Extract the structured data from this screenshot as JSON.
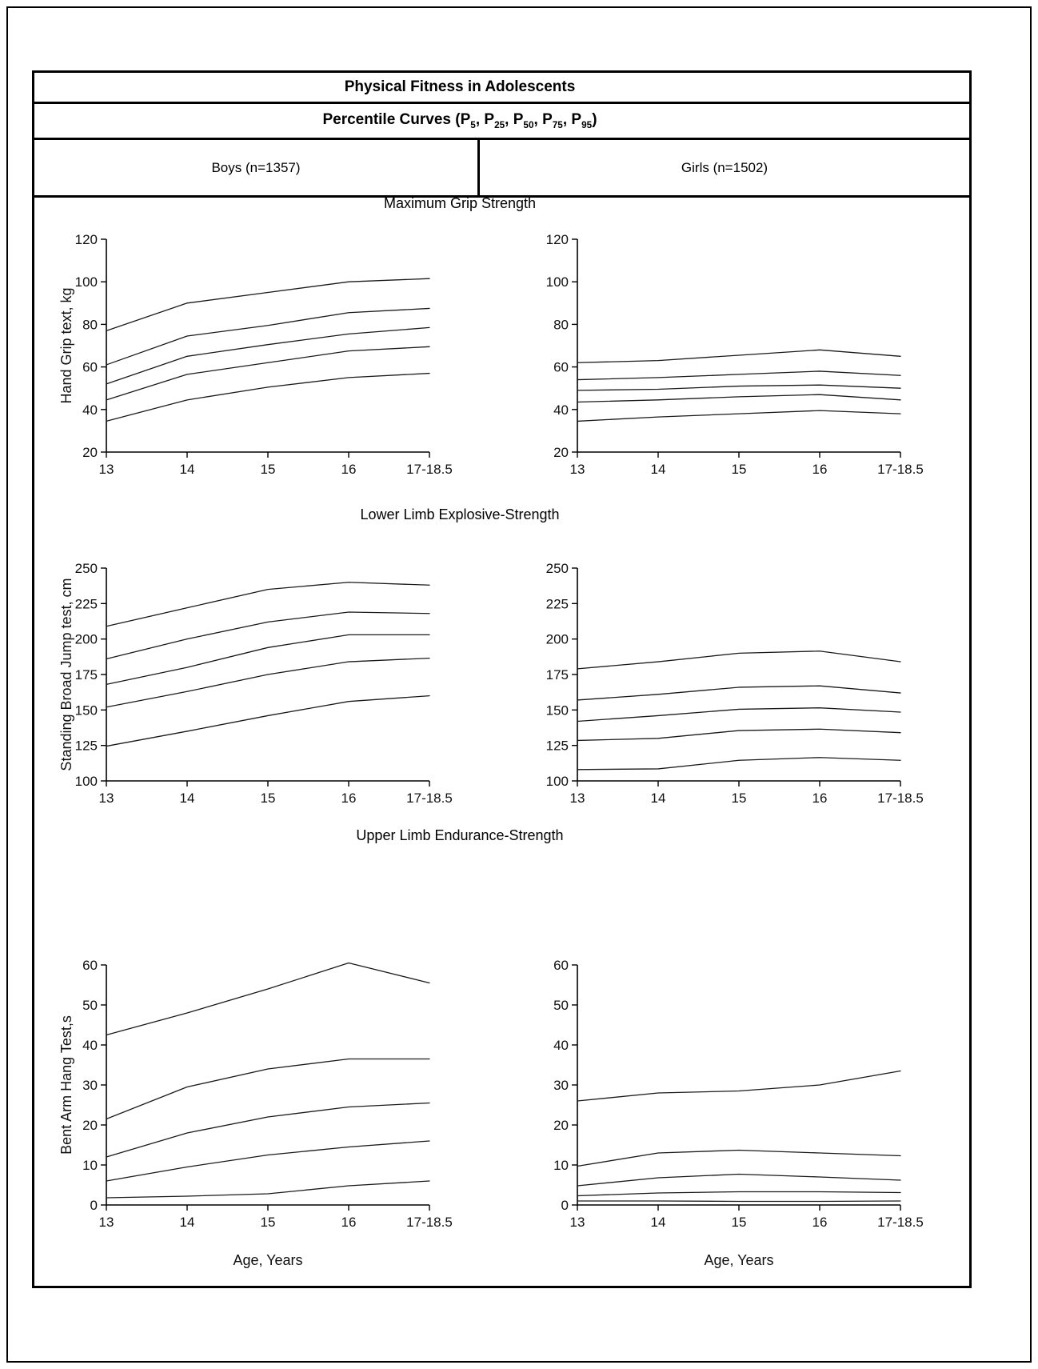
{
  "table": {
    "title": "Physical Fitness in Adolescents",
    "subtitle": {
      "prefix": "Percentile Curves (",
      "base": "P",
      "percentiles": [
        "5",
        "25",
        "50",
        "75",
        "95"
      ],
      "separator": ", ",
      "suffix": ")"
    },
    "columns": [
      {
        "label": "Boys (n=1357)"
      },
      {
        "label": "Girls (n=1502)"
      }
    ]
  },
  "sections": [
    {
      "title": "Maximum Grip Strength"
    },
    {
      "title": "Lower Limb Explosive-Strength"
    },
    {
      "title": "Upper Limb Endurance-Strength"
    }
  ],
  "chart_data": [
    {
      "id": "boys-grip",
      "type": "line",
      "group": "boys",
      "row_title": "Maximum Grip Strength",
      "x_categories": [
        "13",
        "14",
        "15",
        "16",
        "17-18.5"
      ],
      "ylabel": "Hand Grip text, kg",
      "xlabel": "",
      "ylim": [
        20,
        120
      ],
      "yticks": [
        20,
        40,
        60,
        80,
        100,
        120
      ],
      "series": [
        {
          "name": "P5",
          "values": [
            34.5,
            44.5,
            50.5,
            55,
            57
          ]
        },
        {
          "name": "P25",
          "values": [
            44.5,
            56.5,
            62,
            67.5,
            69.5
          ]
        },
        {
          "name": "P50",
          "values": [
            52,
            65,
            70.5,
            75.5,
            78.5
          ]
        },
        {
          "name": "P75",
          "values": [
            61,
            74.5,
            79.5,
            85.5,
            87.5
          ]
        },
        {
          "name": "P95",
          "values": [
            77,
            90,
            95,
            100,
            101.5
          ]
        }
      ]
    },
    {
      "id": "girls-grip",
      "type": "line",
      "group": "girls",
      "row_title": "Maximum Grip Strength",
      "x_categories": [
        "13",
        "14",
        "15",
        "16",
        "17-18.5"
      ],
      "ylabel": "",
      "xlabel": "",
      "ylim": [
        20,
        120
      ],
      "yticks": [
        20,
        40,
        60,
        80,
        100,
        120
      ],
      "series": [
        {
          "name": "P5",
          "values": [
            34.5,
            36.5,
            38,
            39.5,
            38
          ]
        },
        {
          "name": "P25",
          "values": [
            43.5,
            44.5,
            46,
            47,
            44.5
          ]
        },
        {
          "name": "P50",
          "values": [
            49,
            49.5,
            51,
            51.5,
            50
          ]
        },
        {
          "name": "P75",
          "values": [
            54,
            55,
            56.5,
            58,
            56
          ]
        },
        {
          "name": "P95",
          "values": [
            62,
            63,
            65.5,
            68,
            65
          ]
        }
      ]
    },
    {
      "id": "boys-broad-jump",
      "type": "line",
      "group": "boys",
      "row_title": "Lower Limb Explosive-Strength",
      "x_categories": [
        "13",
        "14",
        "15",
        "16",
        "17-18.5"
      ],
      "ylabel": "Standing Broad Jump test, cm",
      "xlabel": "",
      "ylim": [
        100,
        250
      ],
      "yticks": [
        100,
        125,
        150,
        175,
        200,
        225,
        250
      ],
      "series": [
        {
          "name": "P5",
          "values": [
            124.5,
            135,
            146,
            156,
            160
          ]
        },
        {
          "name": "P25",
          "values": [
            152,
            163,
            175,
            184,
            186.5
          ]
        },
        {
          "name": "P50",
          "values": [
            168,
            180,
            194,
            203,
            203
          ]
        },
        {
          "name": "P75",
          "values": [
            186,
            200,
            212,
            219,
            218
          ]
        },
        {
          "name": "P95",
          "values": [
            209,
            222,
            235,
            240,
            238
          ]
        }
      ]
    },
    {
      "id": "girls-broad-jump",
      "type": "line",
      "group": "girls",
      "row_title": "Lower Limb Explosive-Strength",
      "x_categories": [
        "13",
        "14",
        "15",
        "16",
        "17-18.5"
      ],
      "ylabel": "",
      "xlabel": "",
      "ylim": [
        100,
        250
      ],
      "yticks": [
        100,
        125,
        150,
        175,
        200,
        225,
        250
      ],
      "series": [
        {
          "name": "P5",
          "values": [
            108,
            108.5,
            114.5,
            116.5,
            114.5
          ]
        },
        {
          "name": "P25",
          "values": [
            128.5,
            130,
            135.5,
            136.5,
            134
          ]
        },
        {
          "name": "P50",
          "values": [
            142,
            146,
            150.5,
            151.5,
            148.5
          ]
        },
        {
          "name": "P75",
          "values": [
            157,
            161,
            166,
            167,
            162
          ]
        },
        {
          "name": "P95",
          "values": [
            179,
            184,
            190,
            191.5,
            184
          ]
        }
      ]
    },
    {
      "id": "boys-bent-arm-hang",
      "type": "line",
      "group": "boys",
      "row_title": "Upper Limb Endurance-Strength",
      "x_categories": [
        "13",
        "14",
        "15",
        "16",
        "17-18.5"
      ],
      "ylabel": "Bent Arm Hang Test,s",
      "xlabel": "Age, Years",
      "ylim": [
        0,
        60
      ],
      "yticks": [
        0,
        10,
        20,
        30,
        40,
        50,
        60
      ],
      "series": [
        {
          "name": "P5",
          "values": [
            1.8,
            2.2,
            2.8,
            4.8,
            6
          ]
        },
        {
          "name": "P25",
          "values": [
            6,
            9.5,
            12.5,
            14.5,
            16
          ]
        },
        {
          "name": "P50",
          "values": [
            12,
            18,
            22,
            24.5,
            25.5
          ]
        },
        {
          "name": "P75",
          "values": [
            21.5,
            29.5,
            34,
            36.5,
            36.5
          ]
        },
        {
          "name": "P95",
          "values": [
            42.5,
            48,
            54,
            60.5,
            55.5
          ]
        }
      ]
    },
    {
      "id": "girls-bent-arm-hang",
      "type": "line",
      "group": "girls",
      "row_title": "Upper Limb Endurance-Strength",
      "x_categories": [
        "13",
        "14",
        "15",
        "16",
        "17-18.5"
      ],
      "ylabel": "",
      "xlabel": "Age, Years",
      "ylim": [
        0,
        60
      ],
      "yticks": [
        0,
        10,
        20,
        30,
        40,
        50,
        60
      ],
      "series": [
        {
          "name": "P5",
          "values": [
            1,
            1,
            0.9,
            0.9,
            1
          ]
        },
        {
          "name": "P25",
          "values": [
            2.3,
            3,
            3.3,
            3.3,
            3.1
          ]
        },
        {
          "name": "P50",
          "values": [
            4.8,
            6.8,
            7.7,
            7,
            6.2
          ]
        },
        {
          "name": "P75",
          "values": [
            9.7,
            13,
            13.7,
            13,
            12.3
          ]
        },
        {
          "name": "P95",
          "values": [
            26,
            28,
            28.5,
            30,
            33.5
          ]
        }
      ]
    }
  ]
}
